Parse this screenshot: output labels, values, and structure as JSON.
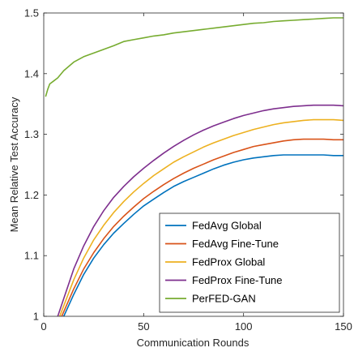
{
  "chart_data": {
    "type": "line",
    "title": "",
    "xlabel": "Communication Rounds",
    "ylabel": "Mean Relative Test Accuracy",
    "xlim": [
      0,
      150
    ],
    "ylim": [
      1.0,
      1.5
    ],
    "xticks": [
      0,
      50,
      100,
      150
    ],
    "yticks": [
      1,
      1.1,
      1.2,
      1.3,
      1.4,
      1.5
    ],
    "xtick_labels": [
      "0",
      "50",
      "100",
      "150"
    ],
    "ytick_labels": [
      "1",
      "1.1",
      "1.2",
      "1.3",
      "1.4",
      "1.5"
    ],
    "grid": false,
    "legend_position": "lower-right",
    "series": [
      {
        "name": "FedAvg Global",
        "color": "#0072BD",
        "x": [
          10,
          15,
          20,
          25,
          30,
          35,
          40,
          45,
          50,
          55,
          60,
          65,
          70,
          75,
          80,
          85,
          90,
          95,
          100,
          105,
          110,
          115,
          120,
          125,
          130,
          135,
          140,
          145,
          150
        ],
        "y": [
          1.0,
          1.036,
          1.069,
          1.096,
          1.118,
          1.137,
          1.153,
          1.168,
          1.182,
          1.193,
          1.204,
          1.214,
          1.222,
          1.229,
          1.236,
          1.243,
          1.249,
          1.254,
          1.258,
          1.261,
          1.263,
          1.265,
          1.266,
          1.266,
          1.266,
          1.266,
          1.266,
          1.265,
          1.265
        ]
      },
      {
        "name": "FedAvg Fine-Tune",
        "color": "#D95319",
        "x": [
          9,
          15,
          20,
          25,
          30,
          35,
          40,
          45,
          50,
          55,
          60,
          65,
          70,
          75,
          80,
          85,
          90,
          95,
          100,
          105,
          110,
          115,
          120,
          125,
          130,
          135,
          140,
          145,
          150
        ],
        "y": [
          1.0,
          1.045,
          1.078,
          1.105,
          1.128,
          1.148,
          1.165,
          1.18,
          1.194,
          1.206,
          1.217,
          1.227,
          1.236,
          1.244,
          1.251,
          1.258,
          1.264,
          1.27,
          1.275,
          1.28,
          1.283,
          1.286,
          1.289,
          1.291,
          1.292,
          1.292,
          1.292,
          1.291,
          1.291
        ]
      },
      {
        "name": "FedProx Global",
        "color": "#EDB120",
        "x": [
          8,
          15,
          20,
          25,
          30,
          35,
          40,
          45,
          50,
          55,
          60,
          65,
          70,
          75,
          80,
          85,
          90,
          95,
          100,
          105,
          110,
          115,
          120,
          125,
          130,
          135,
          140,
          145,
          150
        ],
        "y": [
          1.0,
          1.06,
          1.096,
          1.126,
          1.15,
          1.171,
          1.189,
          1.205,
          1.219,
          1.232,
          1.243,
          1.254,
          1.263,
          1.271,
          1.279,
          1.286,
          1.292,
          1.298,
          1.303,
          1.308,
          1.312,
          1.316,
          1.319,
          1.321,
          1.323,
          1.324,
          1.324,
          1.324,
          1.323
        ]
      },
      {
        "name": "FedProx Fine-Tune",
        "color": "#7E2F8E",
        "x": [
          7,
          15,
          20,
          25,
          30,
          35,
          40,
          45,
          50,
          55,
          60,
          65,
          70,
          75,
          80,
          85,
          90,
          95,
          100,
          105,
          110,
          115,
          120,
          125,
          130,
          135,
          140,
          145,
          150
        ],
        "y": [
          1.0,
          1.078,
          1.116,
          1.148,
          1.174,
          1.196,
          1.214,
          1.23,
          1.244,
          1.257,
          1.269,
          1.28,
          1.29,
          1.299,
          1.307,
          1.314,
          1.32,
          1.326,
          1.331,
          1.335,
          1.339,
          1.342,
          1.344,
          1.346,
          1.347,
          1.348,
          1.348,
          1.348,
          1.347
        ]
      },
      {
        "name": "PerFED-GAN",
        "color": "#77AC30",
        "x": [
          1,
          2,
          3,
          5,
          7,
          10,
          15,
          20,
          25,
          30,
          35,
          40,
          45,
          50,
          55,
          60,
          65,
          70,
          75,
          80,
          85,
          90,
          95,
          100,
          105,
          110,
          115,
          120,
          125,
          130,
          135,
          140,
          145,
          150
        ],
        "y": [
          1.363,
          1.374,
          1.383,
          1.388,
          1.393,
          1.405,
          1.419,
          1.428,
          1.434,
          1.44,
          1.446,
          1.453,
          1.456,
          1.459,
          1.462,
          1.464,
          1.467,
          1.469,
          1.471,
          1.473,
          1.475,
          1.477,
          1.479,
          1.481,
          1.483,
          1.484,
          1.486,
          1.487,
          1.488,
          1.489,
          1.49,
          1.491,
          1.492,
          1.492
        ]
      }
    ]
  }
}
